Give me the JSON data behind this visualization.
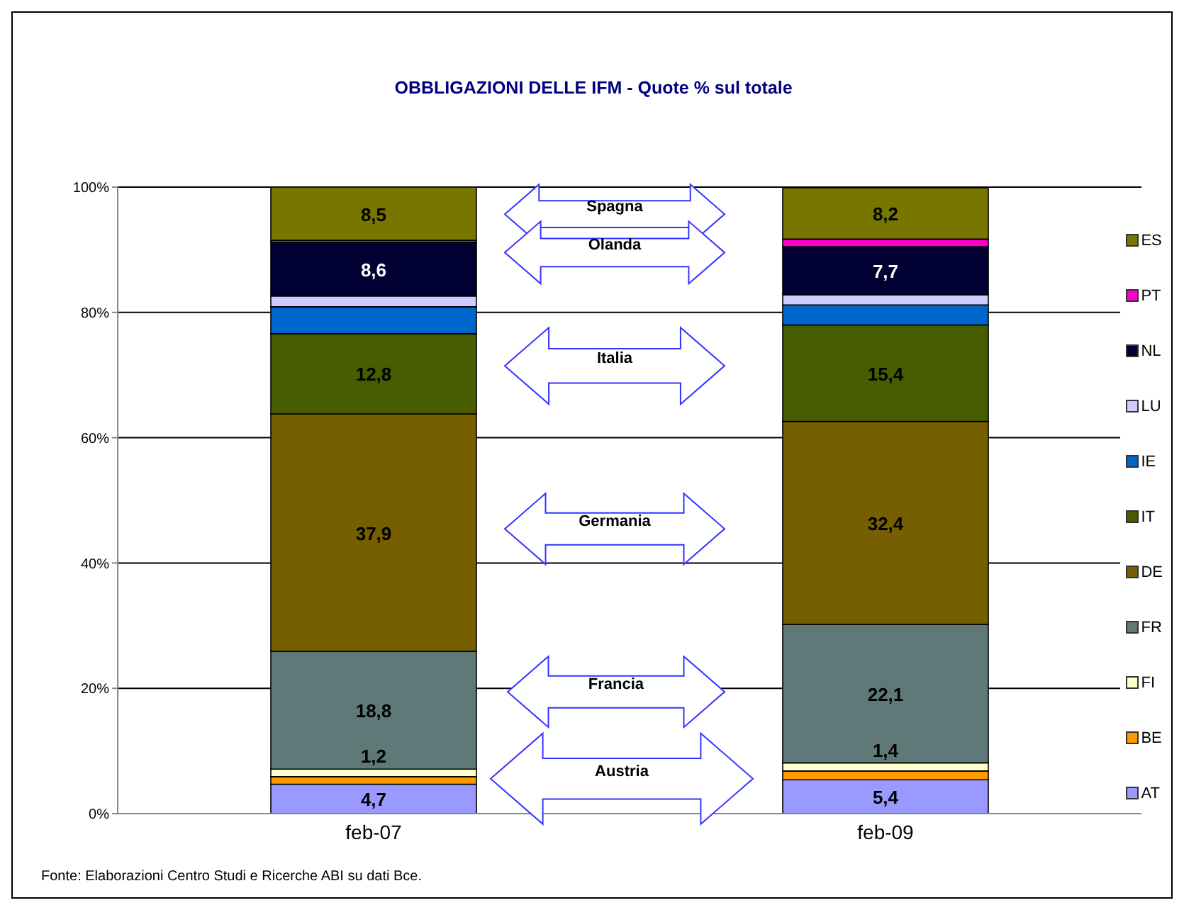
{
  "chart_data": {
    "type": "bar",
    "title": "OBBLIGAZIONI DELLE IFM  - Quote % sul totale",
    "categories": [
      "feb-07",
      "feb-09"
    ],
    "stacked": true,
    "legend": "right",
    "grid": "y",
    "ylim": [
      0,
      100
    ],
    "yticks": [
      {
        "value": 0,
        "label": "0%"
      },
      {
        "value": 20,
        "label": "20%"
      },
      {
        "value": 40,
        "label": "40%"
      },
      {
        "value": 60,
        "label": "60%"
      },
      {
        "value": 80,
        "label": "80%"
      },
      {
        "value": 100,
        "label": "100%"
      }
    ],
    "series": [
      {
        "name": "AT",
        "color": "#9999ff",
        "values": [
          4.7,
          5.4
        ],
        "value_labels": [
          "4,7",
          "5,4"
        ]
      },
      {
        "name": "BE",
        "color": "#ff9900",
        "values": [
          1.2,
          1.4
        ],
        "value_labels": [
          "1,2",
          "1,4"
        ]
      },
      {
        "name": "FI",
        "color": "#ffffcc",
        "values": [
          1.2,
          1.3
        ],
        "value_labels": [
          null,
          null
        ]
      },
      {
        "name": "FR",
        "color": "#5f7878",
        "values": [
          18.8,
          22.1
        ],
        "value_labels": [
          "18,8",
          "22,1"
        ]
      },
      {
        "name": "DE",
        "color": "#765f00",
        "values": [
          37.9,
          32.4
        ],
        "value_labels": [
          "37,9",
          "32,4"
        ]
      },
      {
        "name": "IT",
        "color": "#485c00",
        "values": [
          12.8,
          15.4
        ],
        "value_labels": [
          "12,8",
          "15,4"
        ]
      },
      {
        "name": "IE",
        "color": "#0066cc",
        "values": [
          4.3,
          3.2
        ],
        "value_labels": [
          null,
          null
        ]
      },
      {
        "name": "LU",
        "color": "#ccccff",
        "values": [
          1.7,
          1.6
        ],
        "value_labels": [
          null,
          null
        ]
      },
      {
        "name": "NL",
        "color": "#000033",
        "values": [
          8.6,
          7.7
        ],
        "value_labels": [
          "8,6",
          "7,7"
        ]
      },
      {
        "name": "PT",
        "color": "#ff00cc",
        "values": [
          0.3,
          1.2
        ],
        "value_labels": [
          null,
          null
        ]
      },
      {
        "name": "ES",
        "color": "#777700",
        "values": [
          8.5,
          8.2
        ],
        "value_labels": [
          "8,5",
          "8,2"
        ]
      }
    ],
    "annotations": [
      "Spagna",
      "Olanda",
      "Italia",
      "Germania",
      "Francia",
      "Austria",
      "Fonte: Elaborazioni Centro Studi e Ricerche ABI su dati Bce."
    ]
  }
}
